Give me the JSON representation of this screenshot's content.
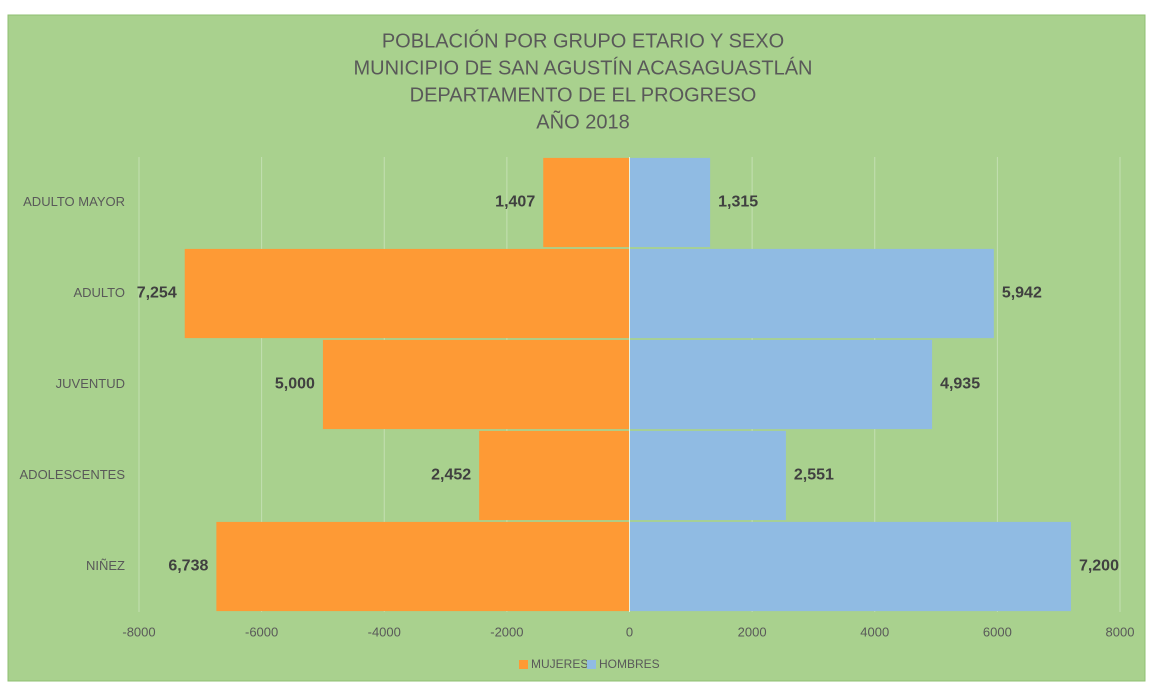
{
  "chart_data": {
    "type": "bar",
    "orientation": "horizontal",
    "stacked": true,
    "title": [
      "POBLACIÓN POR GRUPO ETARIO Y SEXO",
      "MUNICIPIO DE SAN AGUSTÍN ACASAGUASTLÁN",
      "DEPARTAMENTO DE EL PROGRESO",
      "AÑO 2018"
    ],
    "categories": [
      "ADULTO MAYOR",
      "ADULTO",
      "JUVENTUD",
      "ADOLESCENTES",
      "NIÑEZ"
    ],
    "series": [
      {
        "name": "MUJERES",
        "color": "#fe9a35",
        "values": [
          -1407,
          -7254,
          -5000,
          -2452,
          -6738
        ],
        "value_labels": [
          "1,407",
          "7,254",
          "5,000",
          "2,452",
          "6,738"
        ]
      },
      {
        "name": "HOMBRES",
        "color": "#90bbe3",
        "values": [
          1315,
          5942,
          4935,
          2551,
          7200
        ],
        "value_labels": [
          "1,315",
          "5,942",
          "4,935",
          "2,551",
          "7,200"
        ]
      }
    ],
    "xlim": [
      -8000,
      8000
    ],
    "xticks": [
      -8000,
      -6000,
      -4000,
      -2000,
      0,
      2000,
      4000,
      6000,
      8000
    ],
    "grid": true,
    "legend": "bottom"
  }
}
